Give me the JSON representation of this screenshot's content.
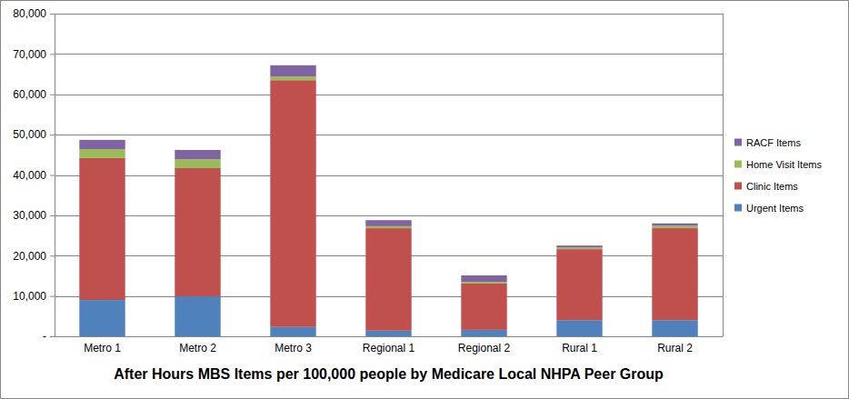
{
  "chart_data": {
    "type": "bar",
    "stacked": true,
    "title": "After Hours MBS Items per 100,000 people by Medicare Local NHPA Peer Group",
    "categories": [
      "Metro 1",
      "Metro 2",
      "Metro 3",
      "Regional 1",
      "Regional 2",
      "Rural 1",
      "Rural 2"
    ],
    "series": [
      {
        "name": "Urgent Items",
        "color": "#4f81bd",
        "values": [
          9000,
          9900,
          2300,
          1400,
          1600,
          4000,
          4000
        ]
      },
      {
        "name": "Clinic Items",
        "color": "#c0504d",
        "values": [
          35200,
          31800,
          61200,
          25400,
          11500,
          17600,
          22800
        ]
      },
      {
        "name": "Home Visit Items",
        "color": "#9bbb59",
        "values": [
          2200,
          2200,
          900,
          500,
          400,
          400,
          600
        ]
      },
      {
        "name": "RACF Items",
        "color": "#8064a2",
        "values": [
          2300,
          2300,
          2800,
          1500,
          1600,
          500,
          600
        ]
      }
    ],
    "ylim": [
      0,
      80000
    ],
    "yticks": [
      {
        "value": 0,
        "label": "-"
      },
      {
        "value": 10000,
        "label": "10,000"
      },
      {
        "value": 20000,
        "label": "20,000"
      },
      {
        "value": 30000,
        "label": "30,000"
      },
      {
        "value": 40000,
        "label": "40,000"
      },
      {
        "value": 50000,
        "label": "50,000"
      },
      {
        "value": 60000,
        "label": "60,000"
      },
      {
        "value": 70000,
        "label": "70,000"
      },
      {
        "value": 80000,
        "label": "80,000"
      }
    ],
    "grid": true,
    "legend": "right"
  }
}
